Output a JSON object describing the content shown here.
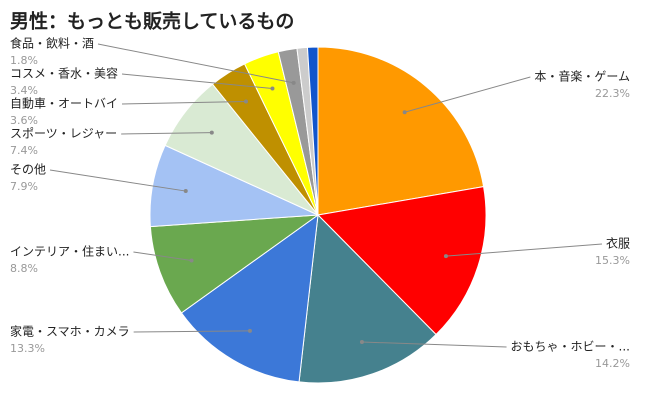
{
  "chart_data": {
    "type": "pie",
    "title": "男性：もっとも販売しているもの",
    "categories": [
      "本・音楽・ゲーム",
      "衣服",
      "おもちゃ・ホビー・...",
      "家電・スマホ・カメラ",
      "インテリア・住まい...",
      "その他",
      "スポーツ・レジャー",
      "自動車・オートバイ",
      "コスメ・香水・美容",
      "食品・飲料・酒",
      null,
      null
    ],
    "values": [
      22.3,
      15.3,
      14.2,
      13.3,
      8.8,
      7.9,
      7.4,
      3.6,
      3.4,
      1.8,
      1.0,
      1.0
    ],
    "value_labels": [
      "22.3%",
      "15.3%",
      "14.2%",
      "13.3%",
      "8.8%",
      "7.9%",
      "7.4%",
      "3.6%",
      "3.4%",
      "1.8%",
      null,
      null
    ],
    "colors": [
      "#ff9900",
      "#ff0000",
      "#45818e",
      "#3c78d8",
      "#6aa84f",
      "#a4c2f4",
      "#d9ead3",
      "#bf9000",
      "#ffff00",
      "#999999",
      "#cccccc",
      "#1155cc"
    ]
  }
}
